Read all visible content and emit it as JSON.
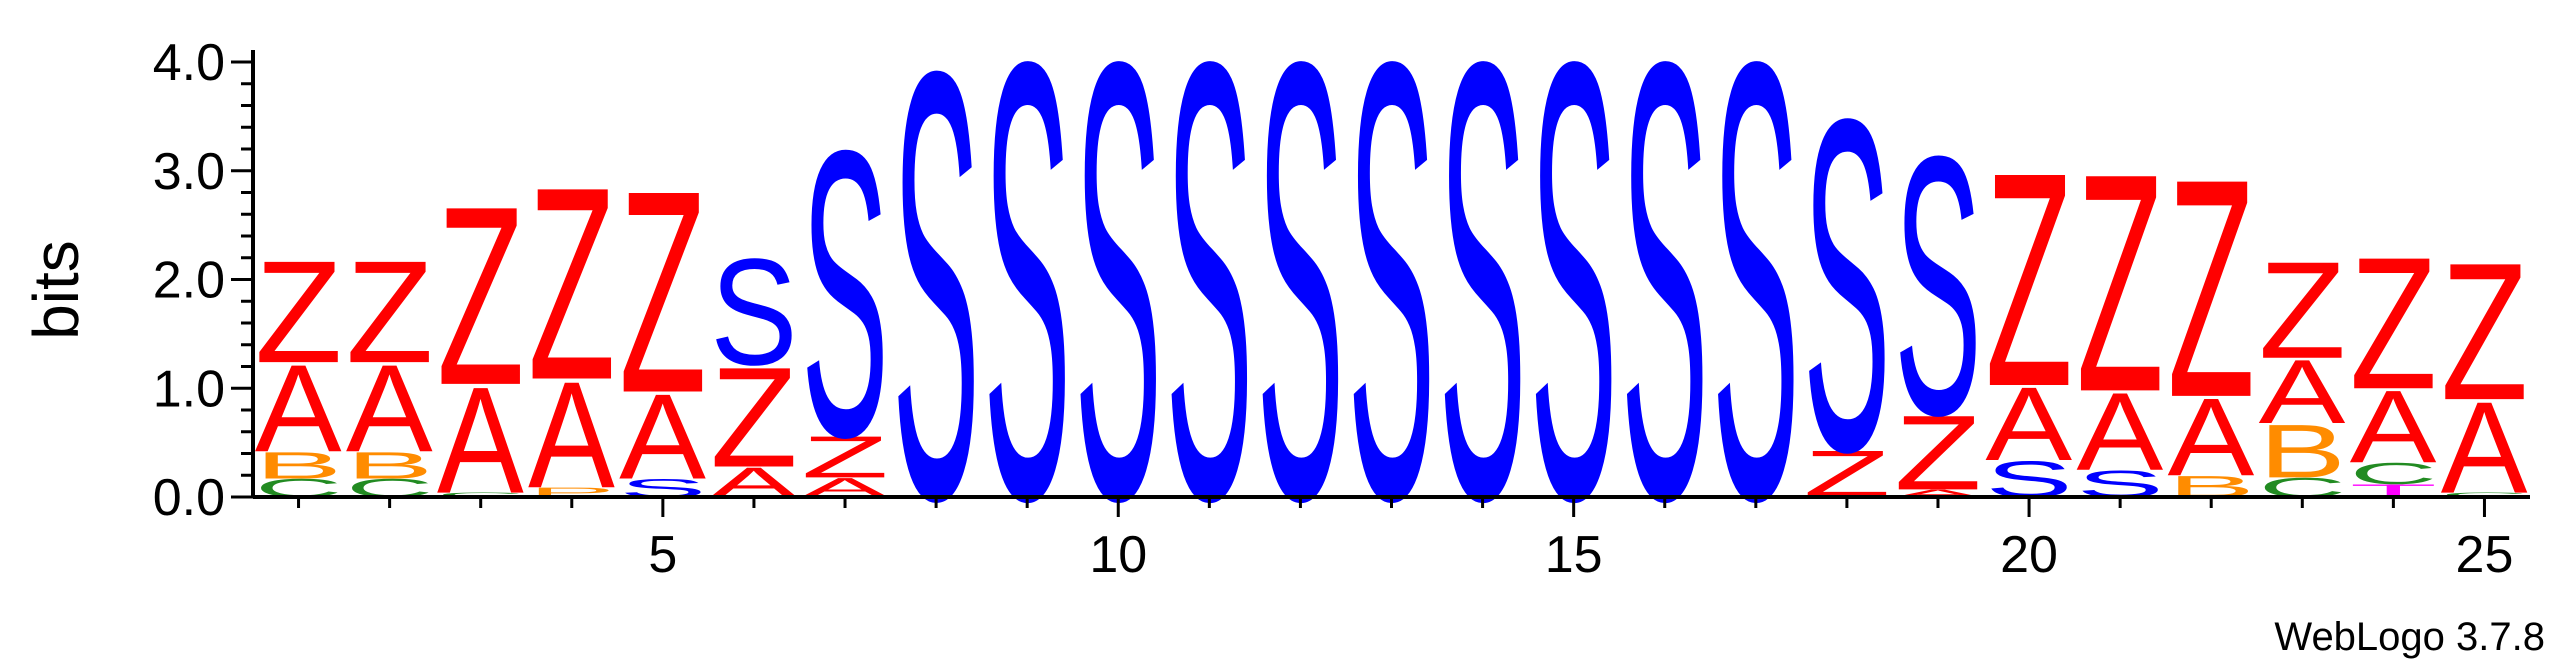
{
  "chart_data": {
    "type": "sequence-logo",
    "ylabel": "bits",
    "ylim": [
      0,
      4.0
    ],
    "y_ticks": [
      "0.0",
      "1.0",
      "2.0",
      "3.0",
      "4.0"
    ],
    "x_ticks": [
      "5",
      "10",
      "15",
      "20",
      "25"
    ],
    "footer": "WebLogo 3.7.8",
    "colors": {
      "Z": "#ff0000",
      "A": "#ff0000",
      "S": "#0000ff",
      "B": "#ff8c00",
      "C": "#228b22",
      "P": "#ff8c00",
      "T": "#ff00ff",
      "axis": "#000000"
    },
    "positions": [
      {
        "pos": 1,
        "stack": [
          [
            "C",
            0.17
          ],
          [
            "B",
            0.25
          ],
          [
            "A",
            0.82
          ],
          [
            "Z",
            0.96
          ]
        ]
      },
      {
        "pos": 2,
        "stack": [
          [
            "C",
            0.17
          ],
          [
            "B",
            0.25
          ],
          [
            "A",
            0.82
          ],
          [
            "Z",
            0.96
          ]
        ]
      },
      {
        "pos": 3,
        "stack": [
          [
            "C",
            0.04
          ],
          [
            "A",
            1.0
          ],
          [
            "Z",
            1.68
          ]
        ]
      },
      {
        "pos": 4,
        "stack": [
          [
            "P",
            0.09
          ],
          [
            "A",
            1.0
          ],
          [
            "Z",
            1.81
          ]
        ]
      },
      {
        "pos": 5,
        "stack": [
          [
            "S",
            0.17
          ],
          [
            "A",
            0.8
          ],
          [
            "Z",
            1.9
          ]
        ]
      },
      {
        "pos": 6,
        "stack": [
          [
            "A",
            0.28
          ],
          [
            "Z",
            0.94
          ],
          [
            "S",
            1.0
          ]
        ]
      },
      {
        "pos": 7,
        "stack": [
          [
            "A",
            0.18
          ],
          [
            "Z",
            0.39
          ],
          [
            "S",
            2.69
          ]
        ]
      },
      {
        "pos": 8,
        "stack": [
          [
            "S",
            4.02
          ]
        ]
      },
      {
        "pos": 9,
        "stack": [
          [
            "S",
            4.11
          ]
        ]
      },
      {
        "pos": 10,
        "stack": [
          [
            "S",
            4.11
          ]
        ]
      },
      {
        "pos": 11,
        "stack": [
          [
            "S",
            4.11
          ]
        ]
      },
      {
        "pos": 12,
        "stack": [
          [
            "S",
            4.11
          ]
        ]
      },
      {
        "pos": 13,
        "stack": [
          [
            "S",
            4.11
          ]
        ]
      },
      {
        "pos": 14,
        "stack": [
          [
            "S",
            4.11
          ]
        ]
      },
      {
        "pos": 15,
        "stack": [
          [
            "S",
            4.11
          ]
        ]
      },
      {
        "pos": 16,
        "stack": [
          [
            "S",
            4.11
          ]
        ]
      },
      {
        "pos": 17,
        "stack": [
          [
            "S",
            4.11
          ]
        ]
      },
      {
        "pos": 18,
        "stack": [
          [
            "Z",
            0.44
          ],
          [
            "S",
            3.12
          ]
        ]
      },
      {
        "pos": 19,
        "stack": [
          [
            "A",
            0.07
          ],
          [
            "Z",
            0.7
          ],
          [
            "S",
            2.43
          ]
        ]
      },
      {
        "pos": 20,
        "stack": [
          [
            "S",
            0.34
          ],
          [
            "A",
            0.69
          ],
          [
            "Z",
            2.01
          ]
        ]
      },
      {
        "pos": 21,
        "stack": [
          [
            "S",
            0.25
          ],
          [
            "A",
            0.73
          ],
          [
            "Z",
            2.05
          ]
        ]
      },
      {
        "pos": 22,
        "stack": [
          [
            "B",
            0.2
          ],
          [
            "A",
            0.73
          ],
          [
            "Z",
            2.05
          ]
        ]
      },
      {
        "pos": 23,
        "stack": [
          [
            "C",
            0.18
          ],
          [
            "B",
            0.5
          ],
          [
            "A",
            0.6
          ],
          [
            "Z",
            0.91
          ]
        ]
      },
      {
        "pos": 24,
        "stack": [
          [
            "T",
            0.12
          ],
          [
            "C",
            0.2
          ],
          [
            "A",
            0.68
          ],
          [
            "Z",
            1.24
          ]
        ]
      },
      {
        "pos": 25,
        "stack": [
          [
            "C",
            0.04
          ],
          [
            "A",
            0.86
          ],
          [
            "Z",
            1.29
          ]
        ]
      }
    ]
  }
}
